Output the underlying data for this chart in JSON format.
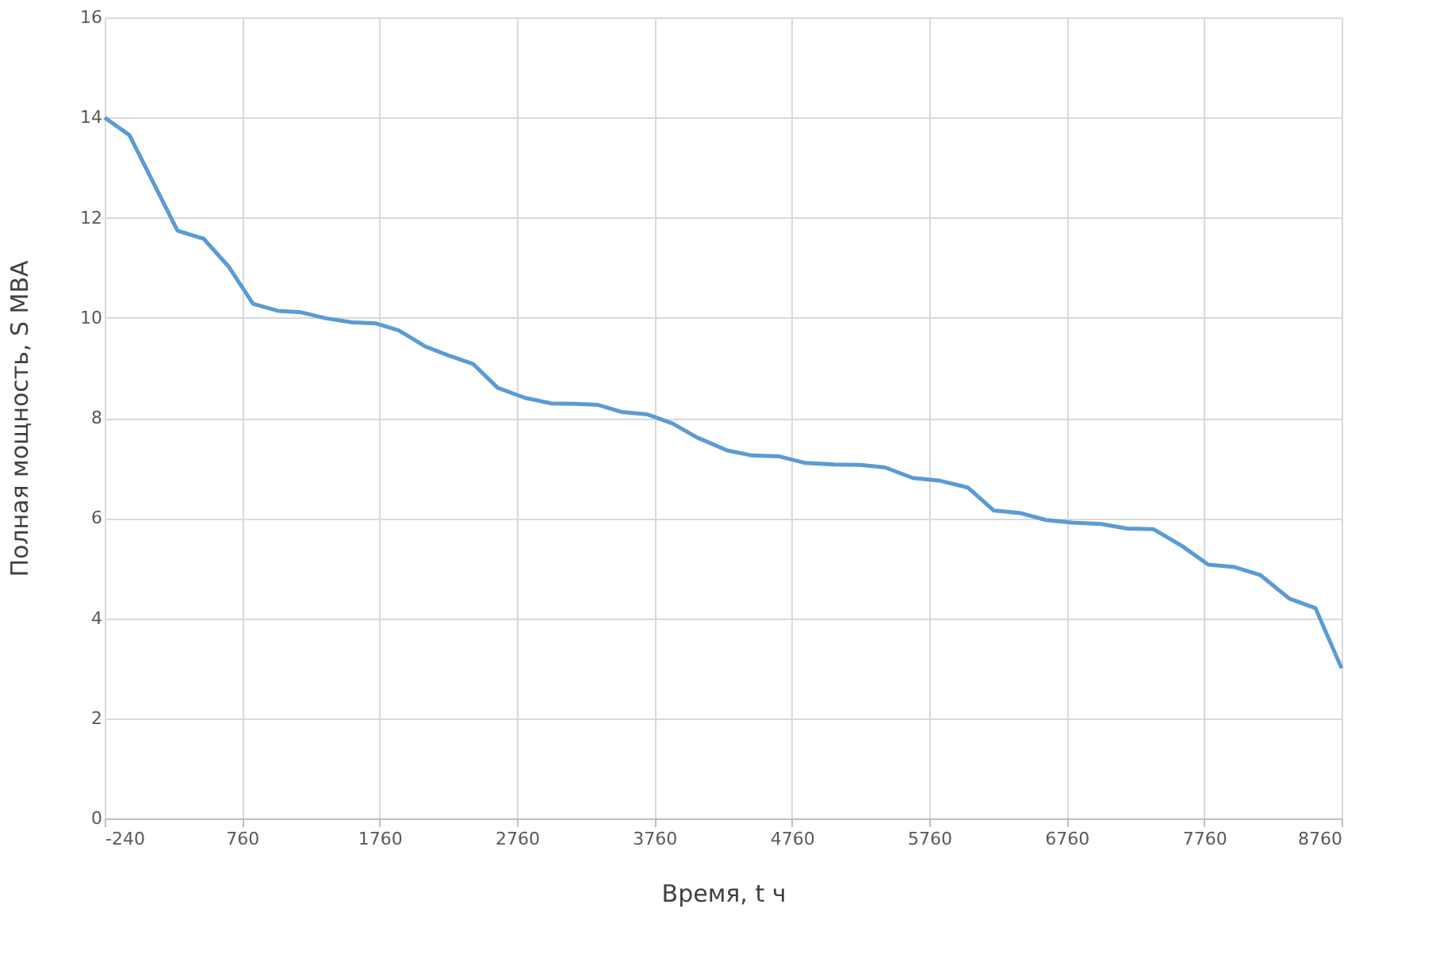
{
  "chart_data": {
    "type": "line",
    "xlabel": "Время, t ч",
    "ylabel": "Полная мощность, S MBA",
    "x": [
      -240,
      -60,
      290,
      480,
      660,
      840,
      1020,
      1190,
      1370,
      1560,
      1730,
      1900,
      2090,
      2260,
      2440,
      2620,
      2820,
      3010,
      3180,
      3350,
      3520,
      3710,
      3890,
      4070,
      4290,
      4470,
      4670,
      4860,
      5070,
      5260,
      5440,
      5640,
      5830,
      6040,
      6230,
      6420,
      6610,
      6800,
      7010,
      7200,
      7390,
      7600,
      7790,
      7980,
      8170,
      8380,
      8570,
      8760
    ],
    "series": [
      {
        "color": "#5b9bd5",
        "values": [
          14.0,
          13.65,
          11.74,
          11.58,
          11.03,
          10.28,
          10.14,
          10.11,
          9.99,
          9.91,
          9.89,
          9.75,
          9.43,
          9.25,
          9.08,
          8.6,
          8.4,
          8.29,
          8.28,
          8.26,
          8.12,
          8.07,
          7.89,
          7.61,
          7.35,
          7.25,
          7.23,
          7.1,
          7.07,
          7.06,
          7.01,
          6.8,
          6.75,
          6.61,
          6.15,
          6.1,
          5.96,
          5.91,
          5.88,
          5.79,
          5.78,
          5.44,
          5.07,
          5.02,
          4.86,
          4.39,
          4.2,
          3.0
        ]
      }
    ],
    "xlim": [
      -240,
      8760
    ],
    "xticks": [
      -240,
      760,
      1760,
      2760,
      3760,
      4760,
      5760,
      6760,
      7760,
      8760
    ],
    "ylim": [
      0,
      16
    ],
    "yticks": [
      0,
      2,
      4,
      6,
      8,
      10,
      12,
      14,
      16
    ],
    "grid": true,
    "line_style": "solid",
    "marker": "none"
  }
}
